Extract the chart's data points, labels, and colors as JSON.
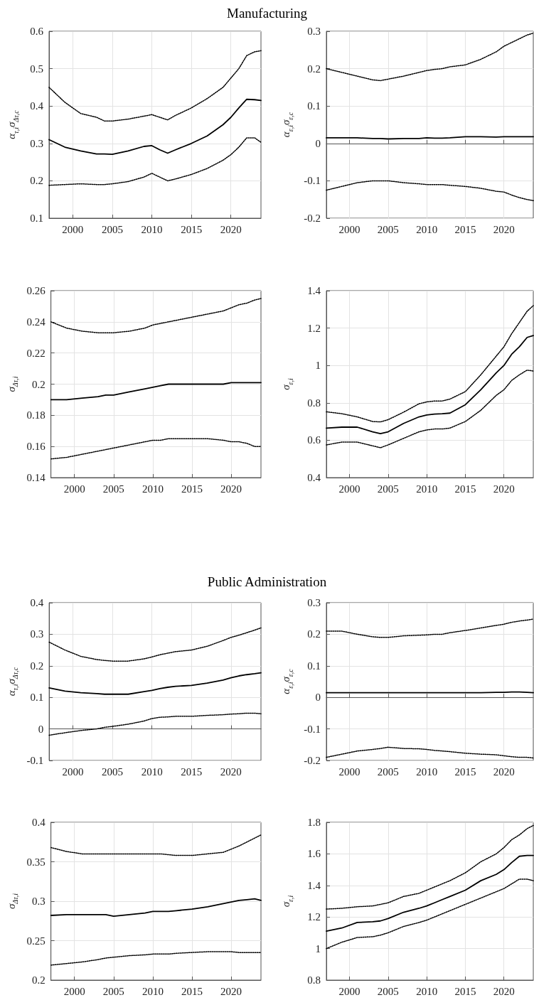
{
  "chart_data": [
    {
      "type": "line",
      "title": "Manufacturing",
      "ylabel": "α$_{τ,i}$σ$_{Δτ,c}$",
      "xlim": [
        1997,
        2023.8
      ],
      "xticks": [
        2000,
        2005,
        2010,
        2015,
        2020
      ],
      "ylim": [
        0.1,
        0.6
      ],
      "yticks": [
        0.1,
        0.2,
        0.3,
        0.4,
        0.5,
        0.6
      ],
      "grid": true,
      "marker": "none",
      "x": [
        1997,
        1999,
        2001,
        2003,
        2004,
        2005,
        2007,
        2009,
        2010,
        2011,
        2012,
        2013,
        2015,
        2017,
        2019,
        2020,
        2021,
        2022,
        2023,
        2023.8
      ],
      "series": [
        {
          "color": "#000000",
          "line_style": "dotted",
          "values": [
            0.45,
            0.41,
            0.38,
            0.37,
            0.36,
            0.36,
            0.365,
            0.373,
            0.377,
            0.37,
            0.363,
            0.375,
            0.395,
            0.42,
            0.45,
            0.475,
            0.5,
            0.535,
            0.545,
            0.548
          ]
        },
        {
          "color": "#000000",
          "line_style": "solid",
          "values": [
            0.31,
            0.29,
            0.28,
            0.272,
            0.272,
            0.271,
            0.28,
            0.292,
            0.294,
            0.283,
            0.274,
            0.283,
            0.3,
            0.32,
            0.35,
            0.37,
            0.395,
            0.418,
            0.417,
            0.415
          ]
        },
        {
          "color": "#000000",
          "line_style": "dotted",
          "values": [
            0.188,
            0.19,
            0.192,
            0.19,
            0.19,
            0.192,
            0.198,
            0.21,
            0.22,
            0.21,
            0.2,
            0.205,
            0.217,
            0.233,
            0.255,
            0.27,
            0.29,
            0.315,
            0.315,
            0.303
          ]
        }
      ]
    },
    {
      "type": "line",
      "ylabel": "α$_{ε,i}$σ$_{ε,c}$",
      "xlim": [
        1997,
        2023.8
      ],
      "xticks": [
        2000,
        2005,
        2010,
        2015,
        2020
      ],
      "ylim": [
        -0.2,
        0.3
      ],
      "yticks": [
        -0.2,
        -0.1,
        0,
        0.1,
        0.2,
        0.3
      ],
      "grid": true,
      "marker": "none",
      "x": [
        1997,
        1999,
        2001,
        2003,
        2004,
        2005,
        2007,
        2009,
        2010,
        2011,
        2012,
        2013,
        2015,
        2017,
        2019,
        2020,
        2021,
        2022,
        2023,
        2023.8
      ],
      "series": [
        {
          "color": "#000000",
          "line_style": "dotted",
          "values": [
            0.2,
            0.19,
            0.18,
            0.17,
            0.168,
            0.172,
            0.18,
            0.19,
            0.195,
            0.198,
            0.2,
            0.205,
            0.21,
            0.225,
            0.245,
            0.26,
            0.27,
            0.28,
            0.29,
            0.295
          ]
        },
        {
          "color": "#000000",
          "line_style": "solid",
          "values": [
            0.015,
            0.015,
            0.015,
            0.013,
            0.013,
            0.012,
            0.013,
            0.013,
            0.015,
            0.014,
            0.014,
            0.015,
            0.018,
            0.018,
            0.017,
            0.018,
            0.018,
            0.018,
            0.018,
            0.018
          ]
        },
        {
          "color": "#000000",
          "line_style": "dotted",
          "values": [
            -0.125,
            -0.115,
            -0.105,
            -0.1,
            -0.1,
            -0.1,
            -0.105,
            -0.108,
            -0.11,
            -0.11,
            -0.11,
            -0.112,
            -0.115,
            -0.12,
            -0.128,
            -0.13,
            -0.138,
            -0.145,
            -0.15,
            -0.153
          ]
        }
      ]
    },
    {
      "type": "line",
      "ylabel": "σ$_{Δτ,i}$",
      "xlim": [
        1997,
        2023.8
      ],
      "xticks": [
        2000,
        2005,
        2010,
        2015,
        2020
      ],
      "ylim": [
        0.14,
        0.26
      ],
      "yticks": [
        0.14,
        0.16,
        0.18,
        0.2,
        0.22,
        0.24,
        0.26
      ],
      "grid": true,
      "marker": "none",
      "x": [
        1997,
        1999,
        2001,
        2003,
        2004,
        2005,
        2007,
        2009,
        2010,
        2011,
        2012,
        2013,
        2015,
        2017,
        2019,
        2020,
        2021,
        2022,
        2023,
        2023.8
      ],
      "series": [
        {
          "color": "#000000",
          "line_style": "dotted",
          "values": [
            0.24,
            0.236,
            0.234,
            0.233,
            0.233,
            0.233,
            0.234,
            0.236,
            0.238,
            0.239,
            0.24,
            0.241,
            0.243,
            0.245,
            0.247,
            0.249,
            0.251,
            0.252,
            0.254,
            0.255
          ]
        },
        {
          "color": "#000000",
          "line_style": "solid",
          "values": [
            0.19,
            0.19,
            0.191,
            0.192,
            0.193,
            0.193,
            0.195,
            0.197,
            0.198,
            0.199,
            0.2,
            0.2,
            0.2,
            0.2,
            0.2,
            0.201,
            0.201,
            0.201,
            0.201,
            0.201
          ]
        },
        {
          "color": "#000000",
          "line_style": "dotted",
          "values": [
            0.152,
            0.153,
            0.155,
            0.157,
            0.158,
            0.159,
            0.161,
            0.163,
            0.164,
            0.164,
            0.165,
            0.165,
            0.165,
            0.165,
            0.164,
            0.163,
            0.163,
            0.162,
            0.16,
            0.16
          ]
        }
      ]
    },
    {
      "type": "line",
      "ylabel": "σ$_{ε,i}$",
      "xlim": [
        1997,
        2023.8
      ],
      "xticks": [
        2000,
        2005,
        2010,
        2015,
        2020
      ],
      "ylim": [
        0.4,
        1.4
      ],
      "yticks": [
        0.4,
        0.6,
        0.8,
        1,
        1.2,
        1.4
      ],
      "grid": true,
      "marker": "none",
      "x": [
        1997,
        1999,
        2001,
        2003,
        2004,
        2005,
        2007,
        2009,
        2010,
        2011,
        2012,
        2013,
        2015,
        2017,
        2019,
        2020,
        2021,
        2022,
        2023,
        2023.8
      ],
      "series": [
        {
          "color": "#000000",
          "line_style": "dotted",
          "values": [
            0.752,
            0.742,
            0.725,
            0.7,
            0.698,
            0.71,
            0.75,
            0.795,
            0.805,
            0.81,
            0.81,
            0.82,
            0.86,
            0.95,
            1.05,
            1.1,
            1.17,
            1.23,
            1.29,
            1.32
          ]
        },
        {
          "color": "#000000",
          "line_style": "solid",
          "values": [
            0.665,
            0.67,
            0.67,
            0.645,
            0.635,
            0.645,
            0.69,
            0.725,
            0.735,
            0.74,
            0.742,
            0.745,
            0.79,
            0.87,
            0.96,
            1,
            1.06,
            1.1,
            1.15,
            1.16
          ]
        },
        {
          "color": "#000000",
          "line_style": "dotted",
          "values": [
            0.575,
            0.59,
            0.59,
            0.57,
            0.56,
            0.575,
            0.61,
            0.645,
            0.655,
            0.66,
            0.66,
            0.665,
            0.7,
            0.76,
            0.84,
            0.87,
            0.92,
            0.95,
            0.975,
            0.97
          ]
        }
      ]
    },
    {
      "type": "line",
      "title": "Public Administration",
      "ylabel": "α$_{τ,i}$σ$_{Δτ,c}$",
      "xlim": [
        1997,
        2023.8
      ],
      "xticks": [
        2000,
        2005,
        2010,
        2015,
        2020
      ],
      "ylim": [
        -0.1,
        0.4
      ],
      "yticks": [
        -0.1,
        0,
        0.1,
        0.2,
        0.3,
        0.4
      ],
      "grid": true,
      "marker": "none",
      "x": [
        1997,
        1999,
        2001,
        2003,
        2004,
        2005,
        2007,
        2009,
        2010,
        2011,
        2012,
        2013,
        2015,
        2017,
        2019,
        2020,
        2021,
        2022,
        2023,
        2023.8
      ],
      "series": [
        {
          "color": "#000000",
          "line_style": "dotted",
          "values": [
            0.275,
            0.25,
            0.23,
            0.22,
            0.217,
            0.215,
            0.215,
            0.222,
            0.228,
            0.235,
            0.24,
            0.245,
            0.25,
            0.262,
            0.28,
            0.29,
            0.297,
            0.305,
            0.313,
            0.32
          ]
        },
        {
          "color": "#000000",
          "line_style": "solid",
          "values": [
            0.13,
            0.12,
            0.115,
            0.112,
            0.11,
            0.11,
            0.11,
            0.118,
            0.122,
            0.128,
            0.132,
            0.135,
            0.138,
            0.145,
            0.155,
            0.162,
            0.168,
            0.172,
            0.175,
            0.178
          ]
        },
        {
          "color": "#000000",
          "line_style": "dotted",
          "values": [
            -0.02,
            -0.012,
            -0.005,
            0,
            0.005,
            0.008,
            0.015,
            0.025,
            0.033,
            0.037,
            0.038,
            0.04,
            0.04,
            0.043,
            0.045,
            0.047,
            0.048,
            0.05,
            0.05,
            0.048
          ]
        }
      ]
    },
    {
      "type": "line",
      "ylabel": "α$_{ε,i}$σ$_{ε,c}$",
      "xlim": [
        1997,
        2023.8
      ],
      "xticks": [
        2000,
        2005,
        2010,
        2015,
        2020
      ],
      "ylim": [
        -0.2,
        0.3
      ],
      "yticks": [
        -0.2,
        -0.1,
        0,
        0.1,
        0.2,
        0.3
      ],
      "grid": true,
      "marker": "none",
      "x": [
        1997,
        1999,
        2001,
        2003,
        2004,
        2005,
        2007,
        2009,
        2010,
        2011,
        2012,
        2013,
        2015,
        2017,
        2019,
        2020,
        2021,
        2022,
        2023,
        2023.8
      ],
      "series": [
        {
          "color": "#000000",
          "line_style": "dotted",
          "values": [
            0.21,
            0.21,
            0.2,
            0.192,
            0.19,
            0.19,
            0.195,
            0.197,
            0.198,
            0.2,
            0.2,
            0.205,
            0.212,
            0.22,
            0.228,
            0.232,
            0.238,
            0.242,
            0.245,
            0.248
          ]
        },
        {
          "color": "#000000",
          "line_style": "solid",
          "values": [
            0.015,
            0.015,
            0.015,
            0.015,
            0.015,
            0.015,
            0.015,
            0.015,
            0.015,
            0.015,
            0.015,
            0.015,
            0.015,
            0.015,
            0.016,
            0.016,
            0.017,
            0.017,
            0.016,
            0.015
          ]
        },
        {
          "color": "#000000",
          "line_style": "dotted",
          "values": [
            -0.19,
            -0.18,
            -0.17,
            -0.165,
            -0.162,
            -0.158,
            -0.162,
            -0.163,
            -0.165,
            -0.168,
            -0.17,
            -0.172,
            -0.177,
            -0.18,
            -0.182,
            -0.185,
            -0.188,
            -0.19,
            -0.19,
            -0.192
          ]
        }
      ]
    },
    {
      "type": "line",
      "ylabel": "σ$_{Δτ,i}$",
      "xlim": [
        1997,
        2023.8
      ],
      "xticks": [
        2000,
        2005,
        2010,
        2015,
        2020
      ],
      "ylim": [
        0.2,
        0.4
      ],
      "yticks": [
        0.2,
        0.25,
        0.3,
        0.35,
        0.4
      ],
      "grid": true,
      "marker": "none",
      "x": [
        1997,
        1999,
        2001,
        2003,
        2004,
        2005,
        2007,
        2009,
        2010,
        2011,
        2012,
        2013,
        2015,
        2017,
        2019,
        2020,
        2021,
        2022,
        2023,
        2023.8
      ],
      "series": [
        {
          "color": "#000000",
          "line_style": "dotted",
          "values": [
            0.368,
            0.363,
            0.36,
            0.36,
            0.36,
            0.36,
            0.36,
            0.36,
            0.36,
            0.36,
            0.359,
            0.358,
            0.358,
            0.36,
            0.362,
            0.366,
            0.37,
            0.375,
            0.38,
            0.384
          ]
        },
        {
          "color": "#000000",
          "line_style": "solid",
          "values": [
            0.282,
            0.283,
            0.283,
            0.283,
            0.283,
            0.281,
            0.283,
            0.285,
            0.287,
            0.287,
            0.287,
            0.288,
            0.29,
            0.293,
            0.297,
            0.299,
            0.301,
            0.302,
            0.303,
            0.301
          ]
        },
        {
          "color": "#000000",
          "line_style": "dotted",
          "values": [
            0.219,
            0.221,
            0.223,
            0.226,
            0.228,
            0.229,
            0.231,
            0.232,
            0.233,
            0.233,
            0.233,
            0.234,
            0.235,
            0.236,
            0.236,
            0.236,
            0.235,
            0.235,
            0.235,
            0.235
          ]
        }
      ]
    },
    {
      "type": "line",
      "ylabel": "σ$_{ε,i}$",
      "xlim": [
        1997,
        2023.8
      ],
      "xticks": [
        2000,
        2005,
        2010,
        2015,
        2020
      ],
      "ylim": [
        0.8,
        1.8
      ],
      "yticks": [
        0.8,
        1,
        1.2,
        1.4,
        1.6,
        1.8
      ],
      "grid": true,
      "marker": "none",
      "x": [
        1997,
        1999,
        2001,
        2003,
        2004,
        2005,
        2007,
        2009,
        2010,
        2011,
        2012,
        2013,
        2015,
        2017,
        2019,
        2020,
        2021,
        2022,
        2023,
        2023.8
      ],
      "series": [
        {
          "color": "#000000",
          "line_style": "dotted",
          "values": [
            1.25,
            1.255,
            1.265,
            1.27,
            1.28,
            1.29,
            1.33,
            1.35,
            1.37,
            1.39,
            1.41,
            1.43,
            1.48,
            1.55,
            1.6,
            1.64,
            1.69,
            1.72,
            1.76,
            1.78
          ]
        },
        {
          "color": "#000000",
          "line_style": "solid",
          "values": [
            1.11,
            1.13,
            1.165,
            1.17,
            1.175,
            1.19,
            1.23,
            1.255,
            1.27,
            1.29,
            1.31,
            1.33,
            1.37,
            1.43,
            1.47,
            1.5,
            1.545,
            1.585,
            1.59,
            1.59
          ]
        },
        {
          "color": "#000000",
          "line_style": "dotted",
          "values": [
            1,
            1.04,
            1.07,
            1.075,
            1.085,
            1.1,
            1.14,
            1.165,
            1.18,
            1.2,
            1.22,
            1.24,
            1.28,
            1.32,
            1.36,
            1.38,
            1.41,
            1.44,
            1.44,
            1.43
          ]
        }
      ]
    }
  ]
}
